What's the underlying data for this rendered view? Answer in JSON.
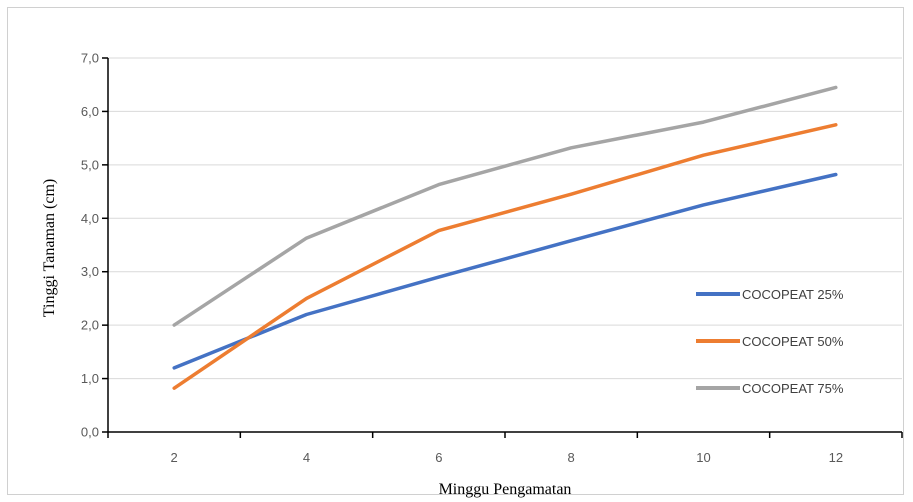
{
  "chart_data": {
    "type": "line",
    "title": "",
    "xlabel": "Minggu Pengamatan",
    "ylabel": "Tinggi Tanaman (cm)",
    "x": [
      2,
      4,
      6,
      8,
      10,
      12
    ],
    "x_tick_labels": [
      "2",
      "4",
      "6",
      "8",
      "10",
      "12"
    ],
    "ylim": [
      0,
      7
    ],
    "y_tick_labels": [
      "0,0",
      "1,0",
      "2,0",
      "3,0",
      "4,0",
      "5,0",
      "6,0",
      "7,0"
    ],
    "grid": true,
    "legend_position": "right",
    "series": [
      {
        "name": "COCOPEAT 25%",
        "color": "#4472C4",
        "values": [
          1.2,
          2.2,
          2.9,
          3.58,
          4.25,
          4.82
        ]
      },
      {
        "name": "COCOPEAT 50%",
        "color": "#ED7D31",
        "values": [
          0.82,
          2.5,
          3.77,
          4.45,
          5.18,
          5.75
        ]
      },
      {
        "name": "COCOPEAT 75%",
        "color": "#A5A5A5",
        "values": [
          2.0,
          3.63,
          4.63,
          5.32,
          5.8,
          6.45
        ]
      }
    ]
  }
}
